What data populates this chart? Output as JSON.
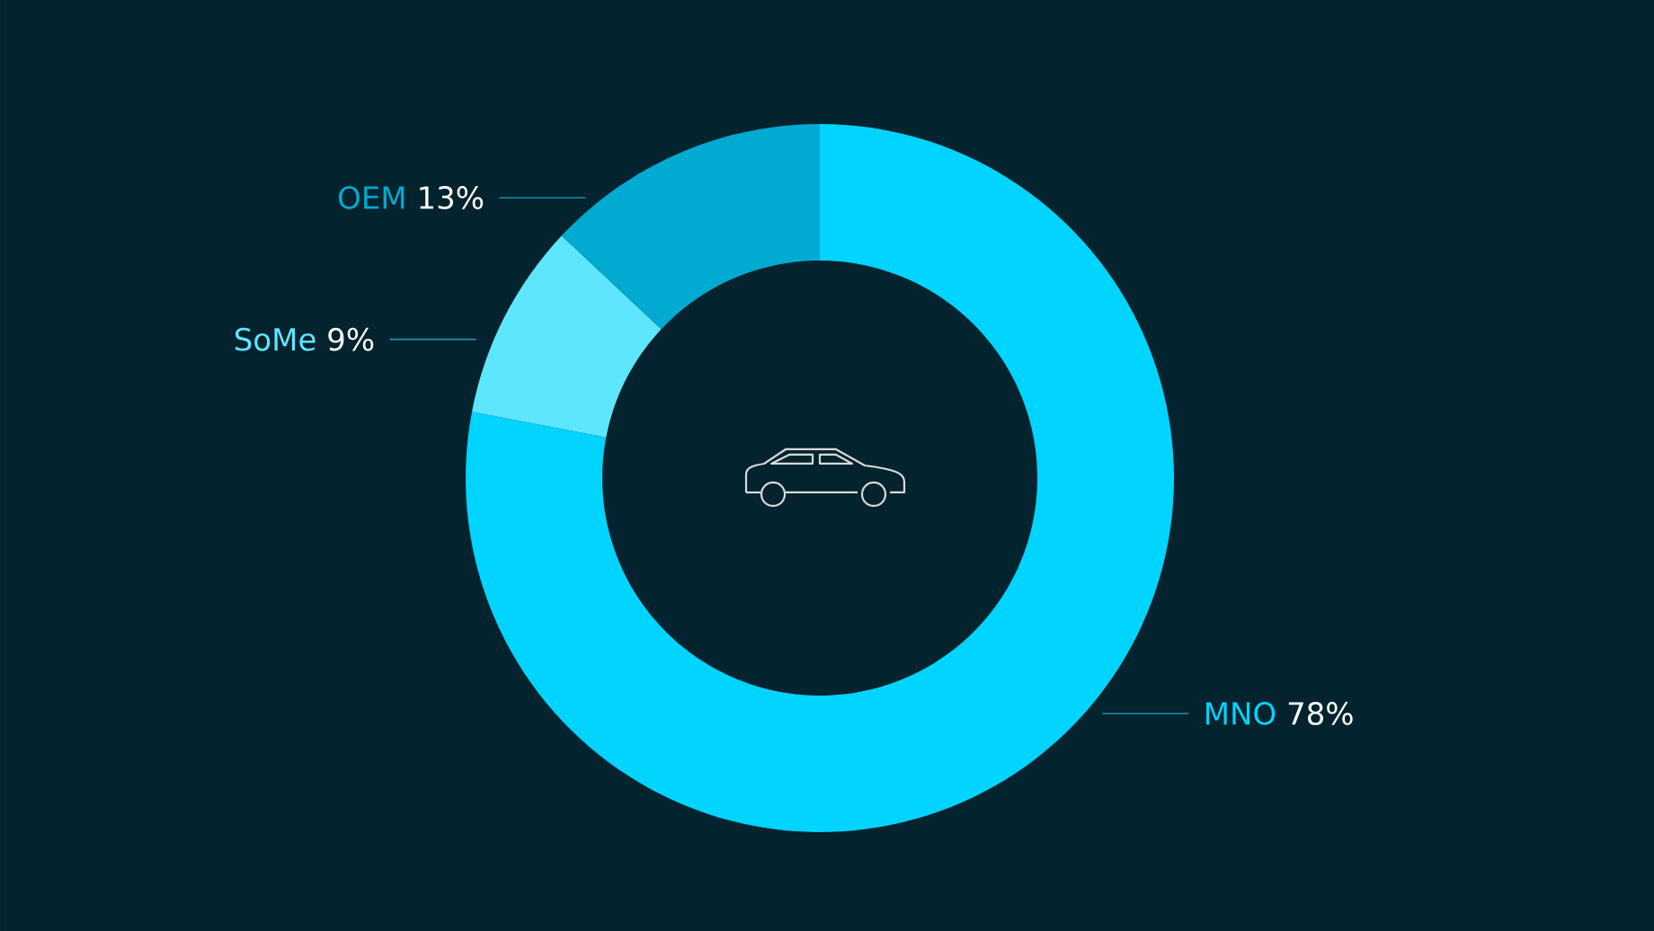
{
  "chart_data": {
    "type": "donut",
    "categories": [
      "MNO",
      "SoMe",
      "OEM"
    ],
    "values": [
      78,
      9,
      13
    ],
    "value_labels": [
      "78%",
      "9%",
      "13%"
    ],
    "colors": [
      "#00d4ff",
      "#5ee6ff",
      "#00aad0"
    ]
  }
}
